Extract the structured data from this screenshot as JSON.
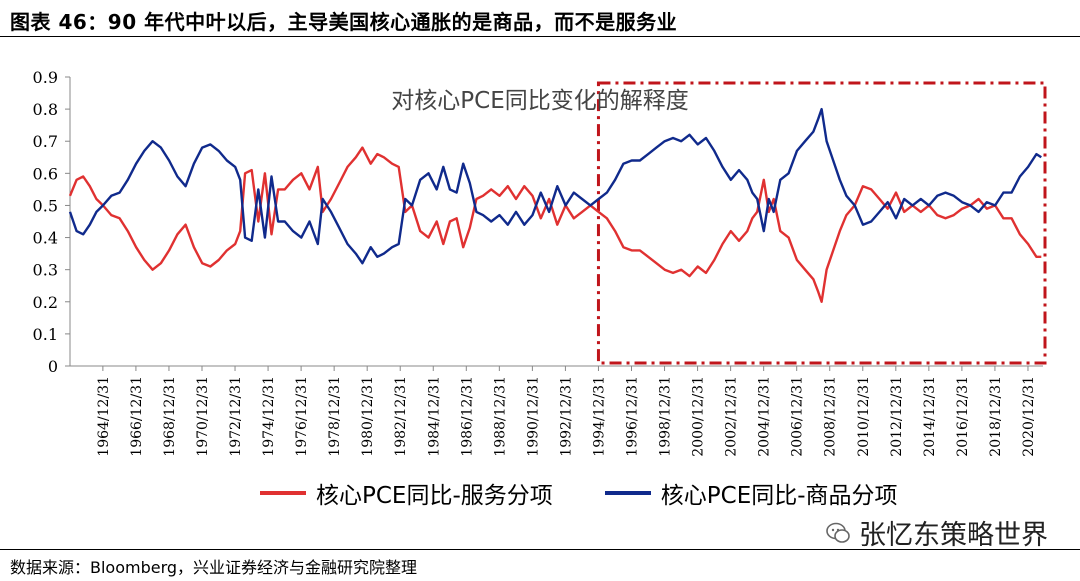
{
  "figure": {
    "title": "图表 46：90 年代中叶以后，主导美国核心通胀的是商品，而不是服务业",
    "source": "数据来源：Bloomberg，兴业证券经济与金融研究院整理",
    "watermark": "张忆东策略世界"
  },
  "colors": {
    "services": "#e03131",
    "goods": "#102a8c",
    "highlight_box": "#c0151b"
  },
  "chart_data": {
    "type": "line",
    "annotation": "对核心PCE同比变化的解释度",
    "highlight_range": [
      "1994/12/31",
      "2021/12/31"
    ],
    "ylim": [
      0,
      0.9
    ],
    "yticks": [
      "0",
      "0.1",
      "0.2",
      "0.3",
      "0.4",
      "0.5",
      "0.6",
      "0.7",
      "0.8",
      "0.9"
    ],
    "xlim": [
      1963.0,
      2021.9
    ],
    "xtick_labels": [
      "1964/12/31",
      "1966/12/31",
      "1968/12/31",
      "1970/12/31",
      "1972/12/31",
      "1974/12/31",
      "1976/12/31",
      "1978/12/31",
      "1980/12/31",
      "1982/12/31",
      "1984/12/31",
      "1986/12/31",
      "1988/12/31",
      "1990/12/31",
      "1992/12/31",
      "1994/12/31",
      "1996/12/31",
      "1998/12/31",
      "2000/12/31",
      "2002/12/31",
      "2004/12/31",
      "2006/12/31",
      "2008/12/31",
      "2010/12/31",
      "2012/12/31",
      "2014/12/31",
      "2016/12/31",
      "2018/12/31",
      "2020/12/31"
    ],
    "series": [
      {
        "name": "核心PCE同比-服务分项",
        "points": [
          [
            1963.0,
            0.53
          ],
          [
            1963.4,
            0.58
          ],
          [
            1963.8,
            0.59
          ],
          [
            1964.2,
            0.56
          ],
          [
            1964.6,
            0.52
          ],
          [
            1965.0,
            0.5
          ],
          [
            1965.5,
            0.47
          ],
          [
            1966.0,
            0.46
          ],
          [
            1966.5,
            0.42
          ],
          [
            1967.0,
            0.37
          ],
          [
            1967.5,
            0.33
          ],
          [
            1968.0,
            0.3
          ],
          [
            1968.5,
            0.32
          ],
          [
            1969.0,
            0.36
          ],
          [
            1969.5,
            0.41
          ],
          [
            1970.0,
            0.44
          ],
          [
            1970.5,
            0.37
          ],
          [
            1971.0,
            0.32
          ],
          [
            1971.5,
            0.31
          ],
          [
            1972.0,
            0.33
          ],
          [
            1972.5,
            0.36
          ],
          [
            1973.0,
            0.38
          ],
          [
            1973.3,
            0.42
          ],
          [
            1973.6,
            0.6
          ],
          [
            1974.0,
            0.61
          ],
          [
            1974.4,
            0.45
          ],
          [
            1974.8,
            0.6
          ],
          [
            1975.2,
            0.41
          ],
          [
            1975.6,
            0.55
          ],
          [
            1976.0,
            0.55
          ],
          [
            1976.5,
            0.58
          ],
          [
            1977.0,
            0.6
          ],
          [
            1977.5,
            0.55
          ],
          [
            1978.0,
            0.62
          ],
          [
            1978.3,
            0.48
          ],
          [
            1978.8,
            0.52
          ],
          [
            1979.3,
            0.57
          ],
          [
            1979.8,
            0.62
          ],
          [
            1980.3,
            0.65
          ],
          [
            1980.7,
            0.68
          ],
          [
            1981.2,
            0.63
          ],
          [
            1981.6,
            0.66
          ],
          [
            1982.0,
            0.65
          ],
          [
            1982.5,
            0.63
          ],
          [
            1982.9,
            0.62
          ],
          [
            1983.3,
            0.48
          ],
          [
            1983.7,
            0.5
          ],
          [
            1984.2,
            0.42
          ],
          [
            1984.7,
            0.4
          ],
          [
            1985.2,
            0.45
          ],
          [
            1985.6,
            0.38
          ],
          [
            1986.0,
            0.45
          ],
          [
            1986.4,
            0.46
          ],
          [
            1986.8,
            0.37
          ],
          [
            1987.2,
            0.43
          ],
          [
            1987.6,
            0.52
          ],
          [
            1988.0,
            0.53
          ],
          [
            1988.5,
            0.55
          ],
          [
            1989.0,
            0.53
          ],
          [
            1989.5,
            0.56
          ],
          [
            1990.0,
            0.52
          ],
          [
            1990.5,
            0.56
          ],
          [
            1991.0,
            0.53
          ],
          [
            1991.5,
            0.46
          ],
          [
            1992.0,
            0.52
          ],
          [
            1992.5,
            0.44
          ],
          [
            1993.0,
            0.5
          ],
          [
            1993.5,
            0.46
          ],
          [
            1994.0,
            0.48
          ],
          [
            1994.5,
            0.5
          ],
          [
            1995.0,
            0.48
          ],
          [
            1995.5,
            0.46
          ],
          [
            1996.0,
            0.42
          ],
          [
            1996.5,
            0.37
          ],
          [
            1997.0,
            0.36
          ],
          [
            1997.5,
            0.36
          ],
          [
            1998.0,
            0.34
          ],
          [
            1998.5,
            0.32
          ],
          [
            1999.0,
            0.3
          ],
          [
            1999.5,
            0.29
          ],
          [
            2000.0,
            0.3
          ],
          [
            2000.5,
            0.28
          ],
          [
            2001.0,
            0.31
          ],
          [
            2001.5,
            0.29
          ],
          [
            2002.0,
            0.33
          ],
          [
            2002.5,
            0.38
          ],
          [
            2003.0,
            0.42
          ],
          [
            2003.5,
            0.39
          ],
          [
            2004.0,
            0.42
          ],
          [
            2004.3,
            0.46
          ],
          [
            2004.6,
            0.48
          ],
          [
            2005.0,
            0.58
          ],
          [
            2005.3,
            0.48
          ],
          [
            2005.6,
            0.52
          ],
          [
            2006.0,
            0.42
          ],
          [
            2006.5,
            0.4
          ],
          [
            2007.0,
            0.33
          ],
          [
            2007.5,
            0.3
          ],
          [
            2008.0,
            0.27
          ],
          [
            2008.3,
            0.23
          ],
          [
            2008.5,
            0.2
          ],
          [
            2008.8,
            0.3
          ],
          [
            2009.2,
            0.36
          ],
          [
            2009.6,
            0.42
          ],
          [
            2010.0,
            0.47
          ],
          [
            2010.5,
            0.5
          ],
          [
            2011.0,
            0.56
          ],
          [
            2011.5,
            0.55
          ],
          [
            2012.0,
            0.52
          ],
          [
            2012.5,
            0.49
          ],
          [
            2013.0,
            0.54
          ],
          [
            2013.5,
            0.48
          ],
          [
            2014.0,
            0.5
          ],
          [
            2014.5,
            0.48
          ],
          [
            2015.0,
            0.5
          ],
          [
            2015.5,
            0.47
          ],
          [
            2016.0,
            0.46
          ],
          [
            2016.5,
            0.47
          ],
          [
            2017.0,
            0.49
          ],
          [
            2017.5,
            0.5
          ],
          [
            2018.0,
            0.52
          ],
          [
            2018.5,
            0.49
          ],
          [
            2019.0,
            0.5
          ],
          [
            2019.5,
            0.46
          ],
          [
            2020.0,
            0.46
          ],
          [
            2020.5,
            0.41
          ],
          [
            2021.0,
            0.38
          ],
          [
            2021.5,
            0.34
          ],
          [
            2021.8,
            0.34
          ]
        ]
      },
      {
        "name": "核心PCE同比-商品分项",
        "points": [
          [
            1963.0,
            0.48
          ],
          [
            1963.4,
            0.42
          ],
          [
            1963.8,
            0.41
          ],
          [
            1964.2,
            0.44
          ],
          [
            1964.6,
            0.48
          ],
          [
            1965.0,
            0.5
          ],
          [
            1965.5,
            0.53
          ],
          [
            1966.0,
            0.54
          ],
          [
            1966.5,
            0.58
          ],
          [
            1967.0,
            0.63
          ],
          [
            1967.5,
            0.67
          ],
          [
            1968.0,
            0.7
          ],
          [
            1968.5,
            0.68
          ],
          [
            1969.0,
            0.64
          ],
          [
            1969.5,
            0.59
          ],
          [
            1970.0,
            0.56
          ],
          [
            1970.5,
            0.63
          ],
          [
            1971.0,
            0.68
          ],
          [
            1971.5,
            0.69
          ],
          [
            1972.0,
            0.67
          ],
          [
            1972.5,
            0.64
          ],
          [
            1973.0,
            0.62
          ],
          [
            1973.3,
            0.58
          ],
          [
            1973.6,
            0.4
          ],
          [
            1974.0,
            0.39
          ],
          [
            1974.4,
            0.55
          ],
          [
            1974.8,
            0.4
          ],
          [
            1975.2,
            0.59
          ],
          [
            1975.6,
            0.45
          ],
          [
            1976.0,
            0.45
          ],
          [
            1976.5,
            0.42
          ],
          [
            1977.0,
            0.4
          ],
          [
            1977.5,
            0.45
          ],
          [
            1978.0,
            0.38
          ],
          [
            1978.3,
            0.52
          ],
          [
            1978.8,
            0.48
          ],
          [
            1979.3,
            0.43
          ],
          [
            1979.8,
            0.38
          ],
          [
            1980.3,
            0.35
          ],
          [
            1980.7,
            0.32
          ],
          [
            1981.2,
            0.37
          ],
          [
            1981.6,
            0.34
          ],
          [
            1982.0,
            0.35
          ],
          [
            1982.5,
            0.37
          ],
          [
            1982.9,
            0.38
          ],
          [
            1983.3,
            0.52
          ],
          [
            1983.7,
            0.5
          ],
          [
            1984.2,
            0.58
          ],
          [
            1984.7,
            0.6
          ],
          [
            1985.2,
            0.55
          ],
          [
            1985.6,
            0.62
          ],
          [
            1986.0,
            0.55
          ],
          [
            1986.4,
            0.54
          ],
          [
            1986.8,
            0.63
          ],
          [
            1987.2,
            0.57
          ],
          [
            1987.6,
            0.48
          ],
          [
            1988.0,
            0.47
          ],
          [
            1988.5,
            0.45
          ],
          [
            1989.0,
            0.47
          ],
          [
            1989.5,
            0.44
          ],
          [
            1990.0,
            0.48
          ],
          [
            1990.5,
            0.44
          ],
          [
            1991.0,
            0.47
          ],
          [
            1991.5,
            0.54
          ],
          [
            1992.0,
            0.48
          ],
          [
            1992.5,
            0.56
          ],
          [
            1993.0,
            0.5
          ],
          [
            1993.5,
            0.54
          ],
          [
            1994.0,
            0.52
          ],
          [
            1994.5,
            0.5
          ],
          [
            1995.0,
            0.52
          ],
          [
            1995.5,
            0.54
          ],
          [
            1996.0,
            0.58
          ],
          [
            1996.5,
            0.63
          ],
          [
            1997.0,
            0.64
          ],
          [
            1997.5,
            0.64
          ],
          [
            1998.0,
            0.66
          ],
          [
            1998.5,
            0.68
          ],
          [
            1999.0,
            0.7
          ],
          [
            1999.5,
            0.71
          ],
          [
            2000.0,
            0.7
          ],
          [
            2000.5,
            0.72
          ],
          [
            2001.0,
            0.69
          ],
          [
            2001.5,
            0.71
          ],
          [
            2002.0,
            0.67
          ],
          [
            2002.5,
            0.62
          ],
          [
            2003.0,
            0.58
          ],
          [
            2003.5,
            0.61
          ],
          [
            2004.0,
            0.58
          ],
          [
            2004.3,
            0.54
          ],
          [
            2004.6,
            0.52
          ],
          [
            2005.0,
            0.42
          ],
          [
            2005.3,
            0.52
          ],
          [
            2005.6,
            0.48
          ],
          [
            2006.0,
            0.58
          ],
          [
            2006.5,
            0.6
          ],
          [
            2007.0,
            0.67
          ],
          [
            2007.5,
            0.7
          ],
          [
            2008.0,
            0.73
          ],
          [
            2008.3,
            0.77
          ],
          [
            2008.5,
            0.8
          ],
          [
            2008.8,
            0.7
          ],
          [
            2009.2,
            0.64
          ],
          [
            2009.6,
            0.58
          ],
          [
            2010.0,
            0.53
          ],
          [
            2010.5,
            0.5
          ],
          [
            2011.0,
            0.44
          ],
          [
            2011.5,
            0.45
          ],
          [
            2012.0,
            0.48
          ],
          [
            2012.5,
            0.51
          ],
          [
            2013.0,
            0.46
          ],
          [
            2013.5,
            0.52
          ],
          [
            2014.0,
            0.5
          ],
          [
            2014.5,
            0.52
          ],
          [
            2015.0,
            0.5
          ],
          [
            2015.5,
            0.53
          ],
          [
            2016.0,
            0.54
          ],
          [
            2016.5,
            0.53
          ],
          [
            2017.0,
            0.51
          ],
          [
            2017.5,
            0.5
          ],
          [
            2018.0,
            0.48
          ],
          [
            2018.5,
            0.51
          ],
          [
            2019.0,
            0.5
          ],
          [
            2019.5,
            0.54
          ],
          [
            2020.0,
            0.54
          ],
          [
            2020.5,
            0.59
          ],
          [
            2021.0,
            0.62
          ],
          [
            2021.5,
            0.66
          ],
          [
            2021.8,
            0.65
          ]
        ]
      }
    ]
  }
}
